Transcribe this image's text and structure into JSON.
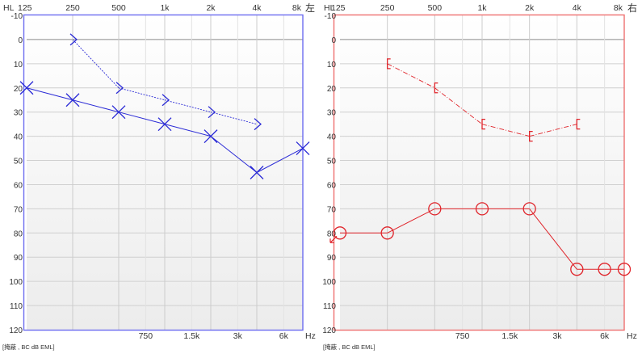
{
  "chart_data": [
    {
      "type": "line",
      "ear_label": "左",
      "axis_label_hl": "HL",
      "axis_label_hz": "Hz",
      "footer_note": "[掩蔽 , BC dB EML]",
      "x_scale": "log",
      "xlim": [
        125,
        8000
      ],
      "ylim": [
        -10,
        120
      ],
      "y_inverted": true,
      "grid": true,
      "top_ticks": [
        {
          "value": 125,
          "label": "125"
        },
        {
          "value": 250,
          "label": "250"
        },
        {
          "value": 500,
          "label": "500"
        },
        {
          "value": 1000,
          "label": "1k"
        },
        {
          "value": 2000,
          "label": "2k"
        },
        {
          "value": 4000,
          "label": "4k"
        },
        {
          "value": 8000,
          "label": "8k"
        }
      ],
      "bottom_ticks": [
        {
          "value": 750,
          "label": "750"
        },
        {
          "value": 1500,
          "label": "1.5k"
        },
        {
          "value": 3000,
          "label": "3k"
        },
        {
          "value": 6000,
          "label": "6k"
        }
      ],
      "y_ticks": [
        -10,
        0,
        10,
        20,
        30,
        40,
        50,
        60,
        70,
        80,
        90,
        100,
        110,
        120
      ],
      "color": "#2a2ad6",
      "frame_color": "#6c6cf0",
      "series": [
        {
          "marker": "cross",
          "style": "solid",
          "x": [
            125,
            250,
            500,
            1000,
            2000,
            4000,
            8000
          ],
          "y": [
            20,
            25,
            30,
            35,
            40,
            55,
            45
          ]
        },
        {
          "marker": "chevron-right",
          "style": "dashed",
          "x": [
            250,
            500,
            1000,
            2000,
            4000
          ],
          "y": [
            0,
            20,
            25,
            30,
            35
          ]
        }
      ]
    },
    {
      "type": "line",
      "ear_label": "右",
      "axis_label_hl": "HL",
      "axis_label_hz": "Hz",
      "footer_note": "[掩蔽 , BC dB EML]",
      "x_scale": "log",
      "xlim": [
        125,
        8000
      ],
      "ylim": [
        -10,
        120
      ],
      "y_inverted": true,
      "grid": true,
      "top_ticks": [
        {
          "value": 125,
          "label": "125"
        },
        {
          "value": 250,
          "label": "250"
        },
        {
          "value": 500,
          "label": "500"
        },
        {
          "value": 1000,
          "label": "1k"
        },
        {
          "value": 2000,
          "label": "2k"
        },
        {
          "value": 4000,
          "label": "4k"
        },
        {
          "value": 8000,
          "label": "8k"
        }
      ],
      "bottom_ticks": [
        {
          "value": 750,
          "label": "750"
        },
        {
          "value": 1500,
          "label": "1.5k"
        },
        {
          "value": 3000,
          "label": "3k"
        },
        {
          "value": 6000,
          "label": "6k"
        }
      ],
      "y_ticks": [
        -10,
        0,
        10,
        20,
        30,
        40,
        50,
        60,
        70,
        80,
        90,
        100,
        110,
        120
      ],
      "color": "#e0242a",
      "frame_color": "#ee7070",
      "series": [
        {
          "marker": "circle",
          "style": "solid",
          "x": [
            125,
            250,
            500,
            1000,
            2000,
            4000,
            6000,
            8000
          ],
          "y": [
            80,
            80,
            70,
            70,
            70,
            95,
            95,
            95
          ]
        },
        {
          "marker": "bracket-left",
          "style": "dashed",
          "x": [
            250,
            500,
            1000,
            2000,
            4000
          ],
          "y": [
            10,
            20,
            35,
            40,
            35
          ]
        },
        {
          "marker": "arrow-down-left",
          "style": "none",
          "x": [
            125
          ],
          "y": [
            80
          ]
        }
      ]
    }
  ]
}
